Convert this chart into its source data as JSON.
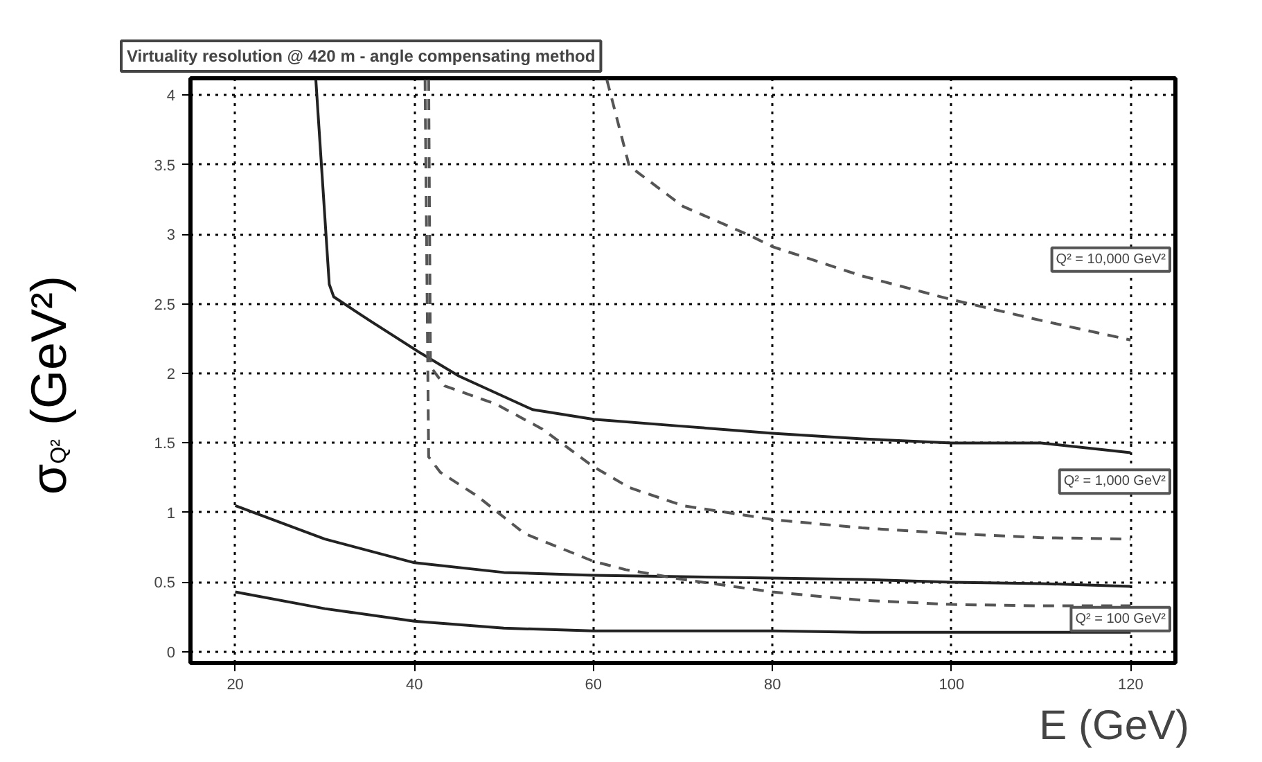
{
  "chart_data": {
    "type": "line",
    "title": "Virtuality resolution @ 420 m - angle compensating method",
    "xlabel": "E (GeV)",
    "ylabel": "σ$_{Q²}$ (GeV²)",
    "xlim": [
      15,
      125
    ],
    "ylim": [
      -0.08,
      4.12
    ],
    "xticks": [
      20,
      40,
      60,
      80,
      100,
      120
    ],
    "yticks": [
      0,
      0.5,
      1,
      1.5,
      2,
      2.5,
      3,
      3.5,
      4
    ],
    "grid": true,
    "series": [
      {
        "color": "#222222",
        "line_style": "solid",
        "x": [
          29.0,
          30.5,
          31.0,
          35,
          40.6,
          45,
          53.2,
          60,
          70,
          80,
          90,
          100,
          110,
          120
        ],
        "values": [
          4.11,
          2.64,
          2.55,
          2.38,
          2.15,
          1.98,
          1.74,
          1.67,
          1.62,
          1.57,
          1.53,
          1.5,
          1.5,
          1.43
        ]
      },
      {
        "color": "#555555",
        "line_style": "dashed",
        "x": [
          61.5,
          64,
          70,
          77.5,
          80,
          90,
          100,
          110,
          120
        ],
        "values": [
          4.11,
          3.49,
          3.2,
          2.99,
          2.91,
          2.7,
          2.53,
          2.38,
          2.24
        ]
      },
      {
        "color": "#222222",
        "line_style": "solid",
        "x": [
          20,
          30,
          40,
          50,
          60,
          70,
          80,
          90,
          100,
          110,
          120
        ],
        "values": [
          1.05,
          0.81,
          0.64,
          0.57,
          0.55,
          0.54,
          0.53,
          0.52,
          0.5,
          0.49,
          0.47
        ]
      },
      {
        "color": "#555555",
        "line_style": "dashed",
        "x": [
          41.6,
          41.8,
          43.4,
          49.1,
          54.3,
          60,
          64,
          70,
          80,
          90,
          100,
          110,
          120
        ],
        "values": [
          4.11,
          2.05,
          1.91,
          1.78,
          1.6,
          1.33,
          1.18,
          1.05,
          0.95,
          0.89,
          0.85,
          0.82,
          0.81
        ]
      },
      {
        "color": "#222222",
        "line_style": "solid",
        "x": [
          20,
          30,
          40,
          50,
          60,
          70,
          80,
          90,
          100,
          110,
          120
        ],
        "values": [
          0.43,
          0.31,
          0.22,
          0.17,
          0.15,
          0.15,
          0.15,
          0.14,
          0.14,
          0.14,
          0.14
        ]
      },
      {
        "color": "#555555",
        "line_style": "dashed",
        "x": [
          41.2,
          41.6,
          42.9,
          47,
          52.3,
          60,
          63.6,
          70,
          80,
          90,
          100,
          110,
          120
        ],
        "values": [
          4.11,
          1.4,
          1.29,
          1.12,
          0.85,
          0.65,
          0.59,
          0.52,
          0.43,
          0.37,
          0.34,
          0.33,
          0.33
        ]
      }
    ],
    "annotations": [
      "Q² = 10,000 GeV²",
      "Q² = 1,000 GeV²",
      "Q² = 100 GeV²"
    ]
  }
}
